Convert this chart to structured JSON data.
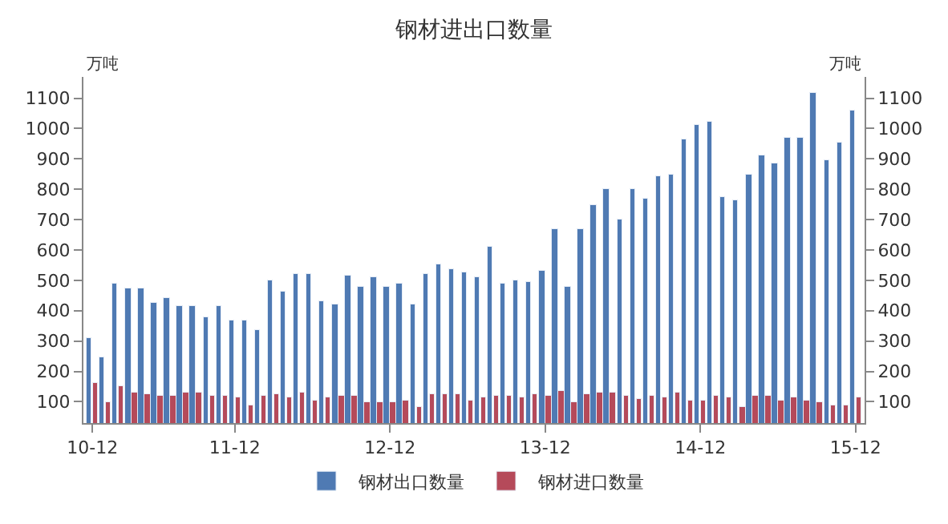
{
  "chart_data": {
    "type": "bar",
    "title": "钢材进出口数量",
    "ylabel": "万吨",
    "y2label": "万吨",
    "categories": [
      "10-12",
      null,
      null,
      null,
      null,
      null,
      null,
      null,
      null,
      null,
      null,
      "11-12",
      null,
      null,
      null,
      null,
      null,
      null,
      null,
      null,
      null,
      null,
      null,
      "12-12",
      null,
      null,
      null,
      null,
      null,
      null,
      null,
      null,
      null,
      null,
      null,
      "13-12",
      null,
      null,
      null,
      null,
      null,
      null,
      null,
      null,
      null,
      null,
      null,
      "14-12",
      null,
      null,
      null,
      null,
      null,
      null,
      null,
      null,
      null,
      null,
      null,
      "15-12"
    ],
    "series": [
      {
        "name": "钢材出口数量",
        "color": "#4f7ab3",
        "values": [
          308,
          244,
          487,
          473,
          473,
          426,
          441,
          415,
          415,
          380,
          417,
          367,
          370,
          335,
          498,
          463,
          519,
          519,
          430,
          421,
          513,
          480,
          509,
          480,
          490,
          420,
          522,
          551,
          535,
          525,
          511,
          610,
          487,
          502,
          495,
          532,
          671,
          478,
          671,
          748,
          802,
          700,
          799,
          770,
          845,
          850,
          964,
          1013,
          1023,
          773,
          762,
          847,
          914,
          884,
          967,
          967,
          1119,
          895,
          954,
          1058
        ]
      },
      {
        "name": "钢材进口数量",
        "color": "#b54a5a",
        "values": [
          162,
          100,
          151,
          132,
          124,
          119,
          121,
          130,
          130,
          118,
          121,
          114,
          87,
          121,
          125,
          113,
          129,
          106,
          114,
          121,
          121,
          100,
          100,
          100,
          106,
          85,
          124,
          125,
          125,
          106,
          116,
          121,
          121,
          113,
          124,
          121,
          134,
          97,
          124,
          128,
          128,
          121,
          110,
          121,
          113,
          130,
          106,
          106,
          121,
          113,
          84,
          121,
          121,
          103,
          113,
          103,
          100,
          90,
          87,
          116
        ]
      }
    ],
    "ylim": [
      30,
      1170
    ],
    "yticks": [
      100,
      200,
      300,
      400,
      500,
      600,
      700,
      800,
      900,
      1000,
      1100
    ],
    "y2lim": [
      30,
      1170
    ],
    "y2ticks": [
      100,
      200,
      300,
      400,
      500,
      600,
      700,
      800,
      900,
      1000,
      1100
    ],
    "legend": "bottom"
  }
}
